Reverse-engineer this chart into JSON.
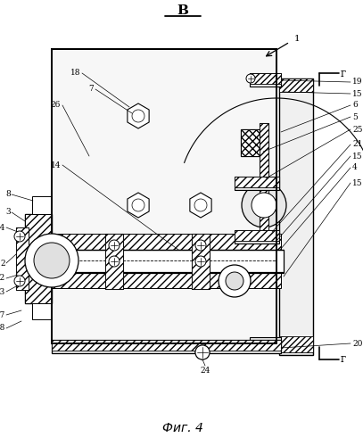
{
  "bg_color": "#ffffff",
  "line_color": "#000000",
  "figsize": [
    4.07,
    5.0
  ],
  "dpi": 100,
  "caption": "Фиг. 4",
  "view_top": "В",
  "view_side": "г"
}
